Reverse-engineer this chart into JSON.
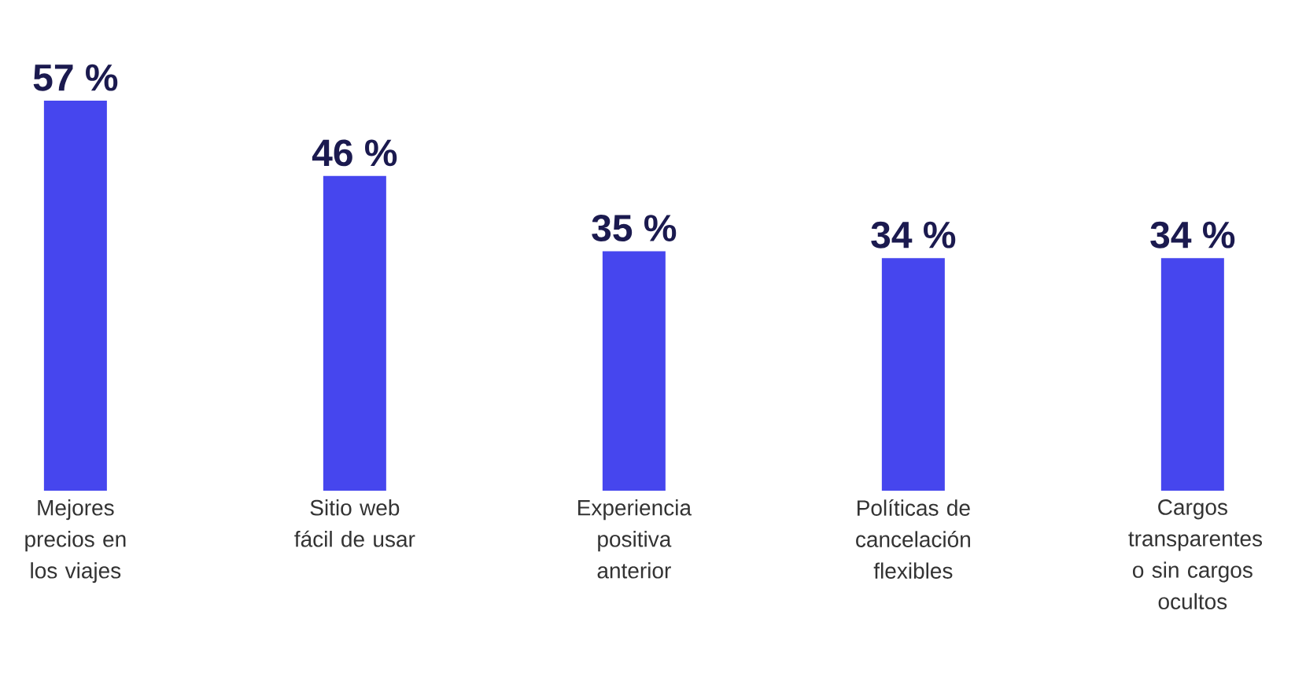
{
  "chart_data": {
    "type": "bar",
    "categories": [
      "Mejores precios en los viajes",
      "Sitio web fácil de usar",
      "Experiencia positiva anterior",
      "Políticas de cancelación flexibles",
      "Cargos transparentes o sin cargos ocultos"
    ],
    "values": [
      57,
      46,
      35,
      34,
      34
    ],
    "color": "#4646ee",
    "value_labels": [
      "57 %",
      "46 %",
      "35 %",
      "34 %",
      "34 %"
    ]
  }
}
